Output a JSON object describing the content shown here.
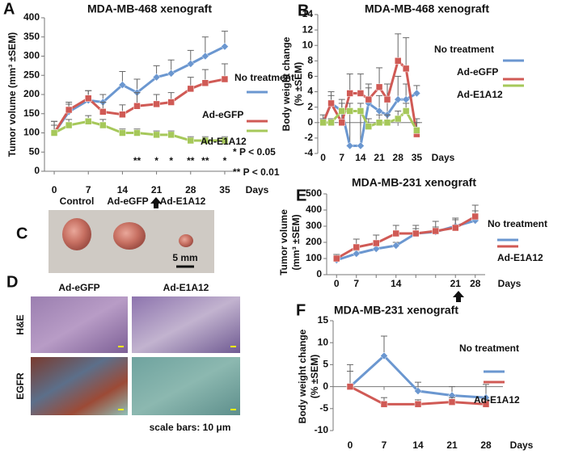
{
  "panels": {
    "letters": [
      "A",
      "B",
      "C",
      "D",
      "E",
      "F"
    ],
    "c_labels": [
      "Control",
      "Ad-eGFP",
      "Ad-E1A12"
    ],
    "c_scale": "5 mm",
    "d_columns": [
      "Ad-eGFP",
      "Ad-E1A12"
    ],
    "d_rows": [
      "H&E",
      "EGFR"
    ],
    "d_scale": "scale bars: 10 μm"
  },
  "chart_data": [
    {
      "type": "line",
      "title": "MDA-MB-468 xenograft",
      "ylabel": [
        "Tumor volume (mm³ ±SEM)"
      ],
      "xlabel": "Days",
      "x": [
        0,
        3,
        7,
        10,
        14,
        17,
        21,
        24,
        28,
        31,
        35
      ],
      "xlim": [
        -2,
        37
      ],
      "xticks": [
        0,
        7,
        14,
        21,
        28,
        35
      ],
      "ylim": [
        0,
        400
      ],
      "yticks": [
        0,
        50,
        100,
        150,
        200,
        250,
        300,
        350,
        400
      ],
      "series": [
        {
          "name": "No treatment",
          "color": "#6b97d0",
          "values": [
            100,
            155,
            185,
            180,
            225,
            205,
            245,
            255,
            280,
            300,
            325
          ],
          "errors": [
            30,
            20,
            25,
            20,
            35,
            35,
            30,
            35,
            35,
            50,
            40
          ]
        },
        {
          "name": "Ad-eGFP",
          "color": "#d05a55",
          "values": [
            100,
            160,
            190,
            155,
            148,
            170,
            175,
            180,
            215,
            230,
            240
          ],
          "errors": [
            30,
            20,
            20,
            25,
            25,
            35,
            25,
            25,
            30,
            35,
            40
          ]
        },
        {
          "name": "Ad-E1A12",
          "color": "#a6c85a",
          "values": [
            100,
            120,
            130,
            120,
            100,
            100,
            95,
            95,
            80,
            80,
            80
          ],
          "errors": [
            20,
            15,
            15,
            15,
            10,
            10,
            10,
            10,
            10,
            10,
            10
          ]
        }
      ],
      "annotations": [
        {
          "x": 17,
          "text": "**"
        },
        {
          "x": 21,
          "text": "*"
        },
        {
          "x": 24,
          "text": "*"
        },
        {
          "x": 28,
          "text": "**"
        },
        {
          "x": 31,
          "text": "**"
        },
        {
          "x": 35,
          "text": "*"
        }
      ],
      "significance": [
        "* P < 0.05",
        "** P < 0.01"
      ]
    },
    {
      "type": "line",
      "title": "MDA-MB-468 xenograft",
      "ylabel": [
        "Body weight change",
        "(% ±SEM)"
      ],
      "xlabel": "Days",
      "x": [
        0,
        3,
        7,
        10,
        14,
        17,
        21,
        24,
        28,
        31,
        35
      ],
      "xlim": [
        -2,
        37
      ],
      "xticks": [
        0,
        7,
        14,
        21,
        28,
        35
      ],
      "ylim": [
        -4,
        14
      ],
      "yticks": [
        -4,
        -2,
        0,
        2,
        4,
        6,
        8,
        10,
        12,
        14
      ],
      "series": [
        {
          "name": "No treatment",
          "color": "#6b97d0",
          "values": [
            0,
            2.5,
            1.5,
            -3,
            -3,
            2.5,
            1.5,
            1,
            3,
            3,
            3.8
          ],
          "errors": [
            1,
            1.5,
            1.5,
            4.5,
            4.5,
            2,
            2,
            2,
            3,
            2,
            1
          ]
        },
        {
          "name": "Ad-eGFP",
          "color": "#d05a55",
          "values": [
            0,
            2.5,
            0,
            3.8,
            3.8,
            3,
            4.6,
            3,
            8,
            7,
            -1.5
          ],
          "errors": [
            0.5,
            1,
            1.5,
            2.5,
            2.5,
            2,
            2.5,
            2,
            3.5,
            4,
            2
          ]
        },
        {
          "name": "Ad-E1A12",
          "color": "#a6c85a",
          "values": [
            0,
            0,
            1.5,
            1.5,
            1.5,
            -0.5,
            0,
            0,
            0.5,
            1.5,
            -1
          ],
          "errors": [
            0.5,
            0.5,
            1,
            1,
            1,
            1,
            1,
            1,
            1,
            1,
            1
          ]
        }
      ]
    },
    {
      "type": "line",
      "title": "MDA-MB-231 xenograft",
      "ylabel": [
        "Tumor volume",
        "(mm³ ±SEM)"
      ],
      "xlabel": "Days",
      "categories": [
        "0",
        "7",
        null,
        "14",
        null,
        null,
        "21",
        "28"
      ],
      "ylim": [
        0,
        500
      ],
      "yticks": [
        0,
        100,
        200,
        300,
        400,
        500
      ],
      "series": [
        {
          "name": "No treatment",
          "color": "#6b97d0",
          "values": [
            90,
            130,
            160,
            180,
            255,
            265,
            300,
            335
          ],
          "errors": [
            20,
            20,
            20,
            20,
            30,
            30,
            40,
            60
          ]
        },
        {
          "name": "Ad-E1A12",
          "color": "#d05a55",
          "values": [
            100,
            170,
            195,
            255,
            255,
            270,
            290,
            360
          ],
          "errors": [
            25,
            50,
            50,
            50,
            50,
            60,
            60,
            70
          ]
        }
      ]
    },
    {
      "type": "line",
      "title": "MDA-MB-231 xenograft",
      "ylabel": [
        "Body weight change",
        "(% ±SEM)"
      ],
      "xlabel": "Days",
      "categories": [
        "0",
        "7",
        "14",
        "21",
        "28"
      ],
      "ylim": [
        -10,
        15
      ],
      "yticks": [
        -10,
        -5,
        0,
        5,
        10,
        15
      ],
      "series": [
        {
          "name": "No treatment",
          "color": "#6b97d0",
          "values": [
            0,
            7,
            -1,
            -2,
            -2.5
          ],
          "errors": [
            3.5,
            4.5,
            2,
            2,
            3
          ]
        },
        {
          "name": "Ad-E1A12",
          "color": "#d05a55",
          "values": [
            0,
            -4,
            -4,
            -3.5,
            -4
          ],
          "errors": [
            5,
            1.5,
            1,
            1,
            1
          ]
        }
      ]
    }
  ]
}
